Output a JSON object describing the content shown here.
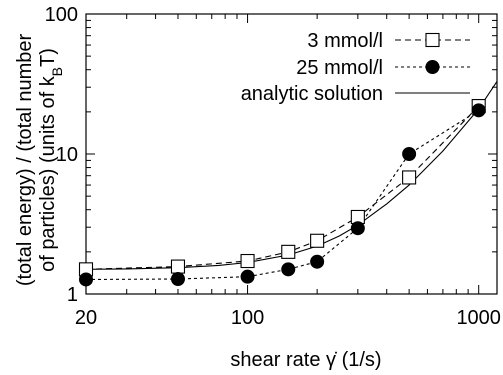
{
  "chart_data": {
    "type": "line",
    "title": "",
    "xlabel": "shear rate γ̇ (1/s)",
    "ylabel_line1": "(total energy) / (total number",
    "ylabel_line2_main": "of particles) (units of k",
    "ylabel_line2_sub": "B",
    "ylabel_line2_end": "T)",
    "x_scale": "log",
    "y_scale": "log",
    "xlim": [
      20,
      1200
    ],
    "ylim": [
      1,
      100
    ],
    "xticks": [
      20,
      100,
      1000
    ],
    "xtick_labels": [
      "20",
      "100",
      "1000"
    ],
    "yticks": [
      1,
      10,
      100
    ],
    "ytick_labels": [
      "1",
      "10",
      "100"
    ],
    "grid": false,
    "legend_position": "top-right",
    "series": [
      {
        "name": "3 mmol/l",
        "style": "dashed",
        "marker": "open-square",
        "x": [
          20,
          50,
          100,
          150,
          200,
          300,
          500,
          1000
        ],
        "y": [
          1.5,
          1.57,
          1.72,
          2.0,
          2.4,
          3.55,
          6.8,
          22.0
        ]
      },
      {
        "name": "25 mmol/l",
        "style": "dotted",
        "marker": "filled-circle",
        "x": [
          20,
          50,
          100,
          150,
          200,
          300,
          500,
          1000
        ],
        "y": [
          1.27,
          1.28,
          1.33,
          1.5,
          1.7,
          2.95,
          10.0,
          20.5
        ]
      },
      {
        "name": "analytic solution",
        "style": "solid",
        "marker": "none",
        "x": [
          20,
          30,
          50,
          75,
          100,
          150,
          200,
          250,
          300,
          400,
          500,
          700,
          1000,
          1200
        ],
        "y": [
          1.5,
          1.51,
          1.54,
          1.6,
          1.68,
          1.9,
          2.2,
          2.6,
          3.1,
          4.4,
          6.0,
          10.5,
          21.0,
          33.0
        ]
      }
    ]
  }
}
